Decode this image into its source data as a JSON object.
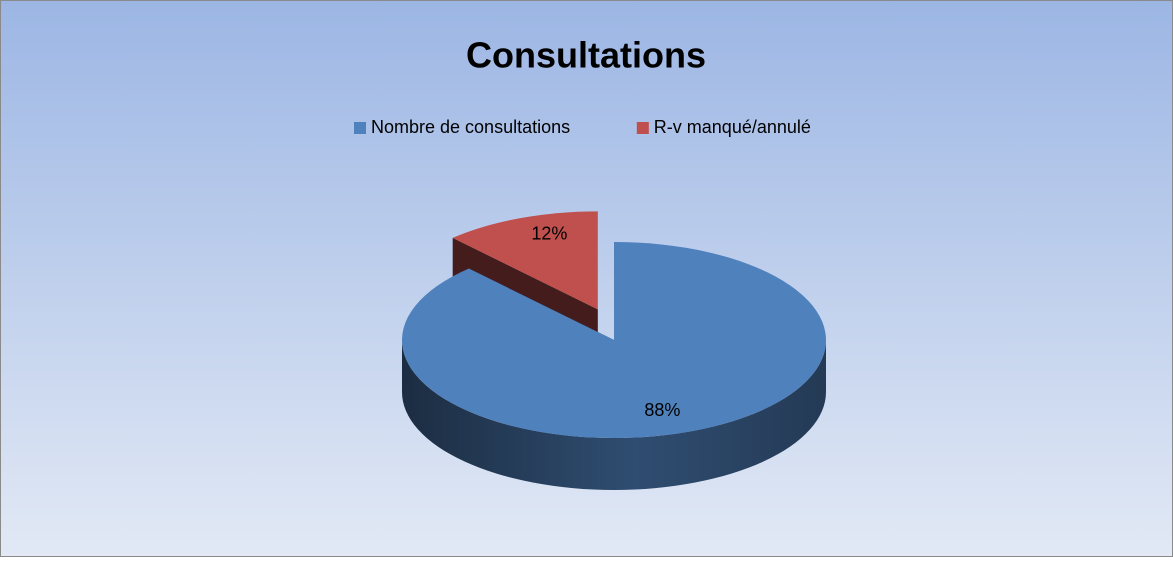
{
  "chart_data": {
    "type": "pie",
    "title": "Consultations",
    "categories": [
      "Nombre de consultations",
      "R-v manqué/annulé"
    ],
    "values": [
      88,
      12
    ],
    "value_labels": [
      "88%",
      "12%"
    ],
    "colors": [
      "#4f81bd",
      "#c0504d"
    ],
    "legend": "top"
  }
}
